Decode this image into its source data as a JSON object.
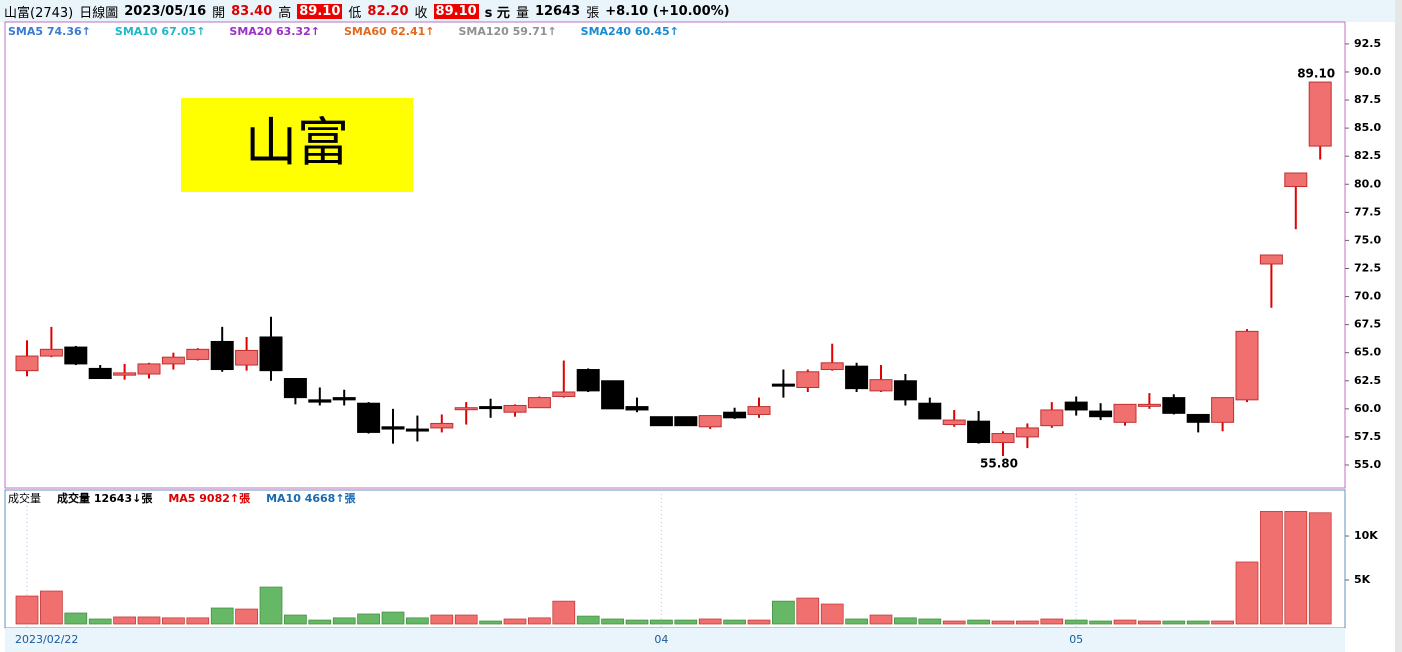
{
  "header": {
    "stock": "山富(2743)",
    "period": "日線圖",
    "date": "2023/05/16",
    "open_label": "開",
    "open": "83.40",
    "high_label": "高",
    "high": "89.10",
    "low_label": "低",
    "low": "82.20",
    "close_label": "收",
    "close": "89.10",
    "close_unit": "s 元",
    "volume_label": "量",
    "volume": "12643",
    "volume_unit": "張",
    "change": "+8.10 (+10.00%)"
  },
  "banner": "山富",
  "legend": [
    {
      "label": "SMA5 74.36↑",
      "color": "#3a7bd5"
    },
    {
      "label": "SMA10 67.05↑",
      "color": "#20b8c8"
    },
    {
      "label": "SMA20 63.32↑",
      "color": "#9b30c8"
    },
    {
      "label": "SMA60 62.41↑",
      "color": "#e06a20"
    },
    {
      "label": "SMA120 59.71↑",
      "color": "#909090"
    },
    {
      "label": "SMA240 60.45↑",
      "color": "#1a8ad0"
    }
  ],
  "volume_legend": [
    {
      "label": "成交量",
      "color": "#000"
    },
    {
      "label": "成交量 12643↓張",
      "color": "#000"
    },
    {
      "label": "MA5 9082↑張",
      "color": "#d00"
    },
    {
      "label": "MA10 4668↑張",
      "color": "#1a6ab0"
    }
  ],
  "chart_data": {
    "type": "candlestick",
    "categories": [
      "2023/02/22",
      null,
      null,
      null,
      null,
      null,
      null,
      null,
      null,
      null,
      null,
      null,
      null,
      null,
      null,
      null,
      null,
      null,
      null,
      null,
      null,
      null,
      null,
      null,
      null,
      null,
      "04",
      null,
      null,
      null,
      null,
      null,
      null,
      null,
      null,
      null,
      null,
      null,
      null,
      null,
      null,
      null,
      null,
      "05",
      null,
      null,
      null,
      null,
      null,
      null,
      null,
      null,
      null,
      null
    ],
    "open": [
      63.4,
      64.7,
      65.5,
      63.6,
      63.0,
      63.1,
      64.0,
      64.4,
      66.0,
      63.9,
      66.4,
      62.7,
      60.8,
      61.0,
      60.5,
      58.4,
      58.2,
      58.3,
      60.0,
      60.2,
      59.7,
      60.1,
      61.1,
      63.5,
      62.5,
      60.2,
      59.3,
      59.3,
      58.4,
      59.7,
      59.5,
      62.2,
      61.9,
      63.5,
      63.8,
      61.6,
      62.5,
      60.5,
      58.6,
      58.9,
      57.0,
      57.5,
      58.5,
      60.6,
      59.8,
      58.8,
      60.3,
      61.0,
      59.5,
      58.8,
      60.8,
      72.9,
      79.8,
      83.4
    ],
    "high": [
      66.1,
      67.3,
      65.6,
      63.9,
      64.0,
      64.1,
      65.0,
      65.4,
      67.3,
      66.4,
      68.2,
      62.7,
      61.9,
      61.7,
      60.6,
      60.0,
      59.4,
      59.5,
      60.6,
      60.9,
      60.4,
      61.1,
      64.3,
      63.6,
      62.5,
      61.0,
      59.3,
      59.3,
      59.4,
      60.1,
      61.0,
      63.5,
      63.5,
      65.8,
      64.1,
      63.9,
      63.1,
      61.0,
      59.9,
      59.8,
      58.0,
      58.7,
      60.6,
      61.1,
      60.5,
      60.4,
      61.4,
      61.3,
      59.5,
      61.0,
      67.1,
      73.7,
      81.0,
      89.1
    ],
    "low": [
      62.9,
      64.6,
      63.9,
      62.7,
      62.6,
      62.7,
      63.5,
      64.3,
      63.3,
      63.4,
      62.5,
      60.4,
      60.3,
      60.3,
      57.8,
      56.9,
      57.1,
      57.9,
      58.6,
      59.2,
      59.3,
      60.1,
      61.0,
      61.5,
      60.0,
      59.7,
      58.5,
      58.5,
      58.2,
      59.1,
      59.2,
      61.0,
      61.5,
      63.4,
      61.5,
      61.5,
      60.3,
      59.1,
      58.4,
      56.9,
      55.8,
      56.5,
      58.3,
      59.4,
      59.0,
      58.5,
      60.0,
      59.5,
      57.9,
      58.0,
      60.6,
      69.0,
      76.0,
      82.2
    ],
    "close": [
      64.7,
      65.3,
      64.0,
      62.7,
      63.2,
      64.0,
      64.6,
      65.3,
      63.5,
      65.2,
      63.4,
      61.0,
      60.6,
      60.8,
      57.9,
      58.2,
      58.1,
      58.7,
      60.1,
      60.1,
      60.3,
      61.0,
      61.5,
      61.6,
      60.0,
      59.9,
      58.5,
      58.5,
      59.4,
      59.2,
      60.2,
      62.1,
      63.3,
      64.1,
      61.8,
      62.6,
      60.8,
      59.1,
      59.0,
      57.0,
      57.8,
      58.3,
      59.9,
      59.9,
      59.3,
      60.4,
      60.4,
      59.6,
      58.8,
      61.0,
      66.9,
      73.7,
      81.0,
      89.1
    ],
    "volume": [
      3180,
      3750,
      1250,
      570,
      800,
      800,
      700,
      700,
      1820,
      1700,
      4200,
      1020,
      450,
      700,
      1140,
      1360,
      700,
      1020,
      1020,
      340,
      570,
      700,
      2600,
      900,
      570,
      450,
      450,
      450,
      570,
      450,
      450,
      2600,
      2950,
      2270,
      570,
      1020,
      700,
      570,
      340,
      450,
      340,
      340,
      570,
      450,
      340,
      450,
      340,
      340,
      340,
      340,
      7050,
      12800,
      12800,
      12643
    ],
    "ylim": [
      52.95,
      94.45
    ],
    "yticks": [
      {
        "value": 55,
        "label": "55.0"
      },
      {
        "value": 57.5,
        "label": "57.5"
      },
      {
        "value": 60,
        "label": "60.0"
      },
      {
        "value": 62.5,
        "label": "62.5"
      },
      {
        "value": 65,
        "label": "65.0"
      },
      {
        "value": 67.5,
        "label": "67.5"
      },
      {
        "value": 70,
        "label": "70.0"
      },
      {
        "value": 72.5,
        "label": "72.5"
      },
      {
        "value": 75,
        "label": "75.0"
      },
      {
        "value": 77.5,
        "label": "77.5"
      },
      {
        "value": 80,
        "label": "80.0"
      },
      {
        "value": 82.5,
        "label": "82.5"
      },
      {
        "value": 85,
        "label": "85.0"
      },
      {
        "value": 87.5,
        "label": "87.5"
      },
      {
        "value": 90,
        "label": "90.0"
      },
      {
        "value": 92.5,
        "label": "92.5"
      }
    ],
    "y2lim": [
      0,
      15230
    ],
    "y2ticks": [
      {
        "value": 5000,
        "label": "5K"
      },
      {
        "value": 10000,
        "label": "10K"
      }
    ],
    "up_color": "#f07070",
    "down_color": "#000000",
    "volume_down_color": "#66b866",
    "annotations": [
      {
        "label": "89.10",
        "index": 53,
        "at": "high"
      },
      {
        "label": "55.80",
        "index": 40,
        "at": "low"
      }
    ]
  }
}
